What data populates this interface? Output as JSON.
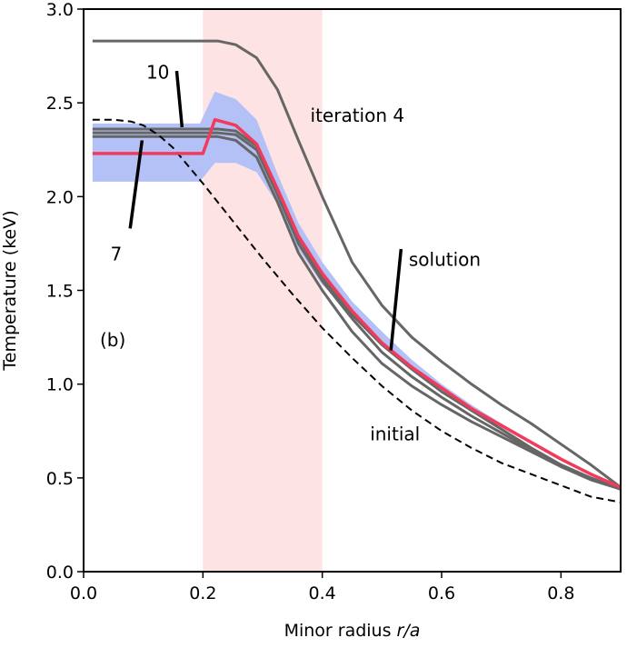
{
  "chart_data": {
    "type": "line",
    "title": "",
    "panel_label": "(b)",
    "xlabel_prefix": "Minor radius ",
    "xlabel_var": "r/a",
    "ylabel": "Temperature (keV)",
    "xlim": [
      0.0,
      0.9
    ],
    "ylim": [
      0.0,
      3.0
    ],
    "x_ticks": [
      0.0,
      0.2,
      0.4,
      0.6,
      0.8
    ],
    "x_tick_labels": [
      "0.0",
      "0.2",
      "0.4",
      "0.6",
      "0.8"
    ],
    "y_ticks": [
      0.0,
      0.5,
      1.0,
      1.5,
      2.0,
      2.5,
      3.0
    ],
    "y_tick_labels": [
      "0.0",
      "0.5",
      "1.0",
      "1.5",
      "2.0",
      "2.5",
      "3.0"
    ],
    "grid": false,
    "shaded_region": {
      "x0": 0.2,
      "x1": 0.4,
      "color": "#fde3e3"
    },
    "uncertainty_band": {
      "color": "#b3c1f7",
      "x": [
        0.015,
        0.05,
        0.1,
        0.15,
        0.18,
        0.195,
        0.22,
        0.255,
        0.29,
        0.325,
        0.36,
        0.4,
        0.45,
        0.5,
        0.55,
        0.6,
        0.65,
        0.7,
        0.75,
        0.8,
        0.85,
        0.9
      ],
      "upper": [
        2.39,
        2.39,
        2.39,
        2.39,
        2.39,
        2.39,
        2.56,
        2.52,
        2.41,
        2.12,
        1.86,
        1.65,
        1.44,
        1.28,
        1.13,
        1.0,
        0.89,
        0.79,
        0.69,
        0.59,
        0.51,
        0.44
      ],
      "lower": [
        2.08,
        2.08,
        2.08,
        2.08,
        2.08,
        2.08,
        2.18,
        2.18,
        2.13,
        1.96,
        1.72,
        1.53,
        1.37,
        1.22,
        1.09,
        0.97,
        0.87,
        0.77,
        0.68,
        0.59,
        0.51,
        0.44
      ]
    },
    "series": [
      {
        "role": "iteration",
        "color": "#666666",
        "style": "solid",
        "x": [
          0.015,
          0.1,
          0.2,
          0.225,
          0.255,
          0.29,
          0.325,
          0.36,
          0.4,
          0.45,
          0.5,
          0.55,
          0.6,
          0.65,
          0.7,
          0.75,
          0.8,
          0.85,
          0.9
        ],
        "y": [
          2.83,
          2.83,
          2.83,
          2.83,
          2.81,
          2.74,
          2.57,
          2.3,
          2.0,
          1.65,
          1.42,
          1.25,
          1.12,
          1.0,
          0.89,
          0.79,
          0.68,
          0.57,
          0.45
        ]
      },
      {
        "role": "iteration",
        "color": "#666666",
        "style": "solid",
        "x": [
          0.015,
          0.1,
          0.2,
          0.225,
          0.255,
          0.29,
          0.325,
          0.36,
          0.4,
          0.45,
          0.5,
          0.55,
          0.6,
          0.65,
          0.7,
          0.75,
          0.8,
          0.85,
          0.9
        ],
        "y": [
          2.36,
          2.36,
          2.36,
          2.36,
          2.35,
          2.27,
          2.03,
          1.78,
          1.57,
          1.37,
          1.21,
          1.08,
          0.96,
          0.86,
          0.76,
          0.66,
          0.57,
          0.5,
          0.44
        ]
      },
      {
        "role": "iteration",
        "color": "#666666",
        "style": "solid",
        "x": [
          0.015,
          0.1,
          0.2,
          0.225,
          0.255,
          0.29,
          0.325,
          0.36,
          0.4,
          0.45,
          0.5,
          0.55,
          0.6,
          0.65,
          0.7,
          0.75,
          0.8,
          0.85,
          0.9
        ],
        "y": [
          2.34,
          2.34,
          2.34,
          2.34,
          2.33,
          2.25,
          2.01,
          1.75,
          1.55,
          1.35,
          1.17,
          1.04,
          0.93,
          0.83,
          0.74,
          0.65,
          0.56,
          0.5,
          0.44
        ]
      },
      {
        "role": "iteration",
        "color": "#666666",
        "style": "solid",
        "x": [
          0.015,
          0.1,
          0.2,
          0.225,
          0.255,
          0.29,
          0.325,
          0.36,
          0.4,
          0.45,
          0.5,
          0.55,
          0.6,
          0.65,
          0.7,
          0.75,
          0.8,
          0.85,
          0.9
        ],
        "y": [
          2.32,
          2.32,
          2.32,
          2.32,
          2.3,
          2.21,
          1.97,
          1.7,
          1.5,
          1.28,
          1.11,
          0.99,
          0.89,
          0.8,
          0.72,
          0.64,
          0.56,
          0.49,
          0.44
        ]
      },
      {
        "role": "initial",
        "color": "#000000",
        "style": "dashed",
        "x": [
          0.015,
          0.05,
          0.08,
          0.1,
          0.125,
          0.15,
          0.2,
          0.25,
          0.3,
          0.35,
          0.4,
          0.45,
          0.5,
          0.55,
          0.6,
          0.65,
          0.7,
          0.75,
          0.8,
          0.85,
          0.9
        ],
        "y": [
          2.41,
          2.41,
          2.4,
          2.38,
          2.33,
          2.26,
          2.07,
          1.87,
          1.67,
          1.48,
          1.3,
          1.14,
          0.99,
          0.86,
          0.75,
          0.66,
          0.58,
          0.52,
          0.46,
          0.4,
          0.37
        ]
      },
      {
        "role": "solution",
        "color": "#f23b5b",
        "style": "solid",
        "x": [
          0.015,
          0.1,
          0.2,
          0.22,
          0.255,
          0.29,
          0.325,
          0.36,
          0.4,
          0.45,
          0.5,
          0.55,
          0.6,
          0.65,
          0.7,
          0.75,
          0.8,
          0.85,
          0.9
        ],
        "y": [
          2.23,
          2.23,
          2.23,
          2.41,
          2.38,
          2.28,
          2.04,
          1.79,
          1.59,
          1.39,
          1.22,
          1.09,
          0.98,
          0.87,
          0.78,
          0.69,
          0.6,
          0.52,
          0.45
        ]
      }
    ],
    "annotations": [
      {
        "text": "iteration 4",
        "x": 0.38,
        "y": 2.4,
        "anchor": "start"
      },
      {
        "text": "solution",
        "x": 0.545,
        "y": 1.63,
        "anchor": "start"
      },
      {
        "text": "initial",
        "x": 0.48,
        "y": 0.7,
        "anchor": "start"
      },
      {
        "text": "10",
        "x": 0.105,
        "y": 2.63,
        "anchor": "start"
      },
      {
        "text": "7",
        "x": 0.045,
        "y": 1.66,
        "anchor": "start"
      }
    ],
    "pointer_lines": [
      {
        "x1": 0.156,
        "y1": 2.67,
        "x2": 0.165,
        "y2": 2.37
      },
      {
        "x1": 0.078,
        "y1": 1.83,
        "x2": 0.098,
        "y2": 2.3
      },
      {
        "x1": 0.532,
        "y1": 1.72,
        "x2": 0.515,
        "y2": 1.18
      }
    ]
  }
}
